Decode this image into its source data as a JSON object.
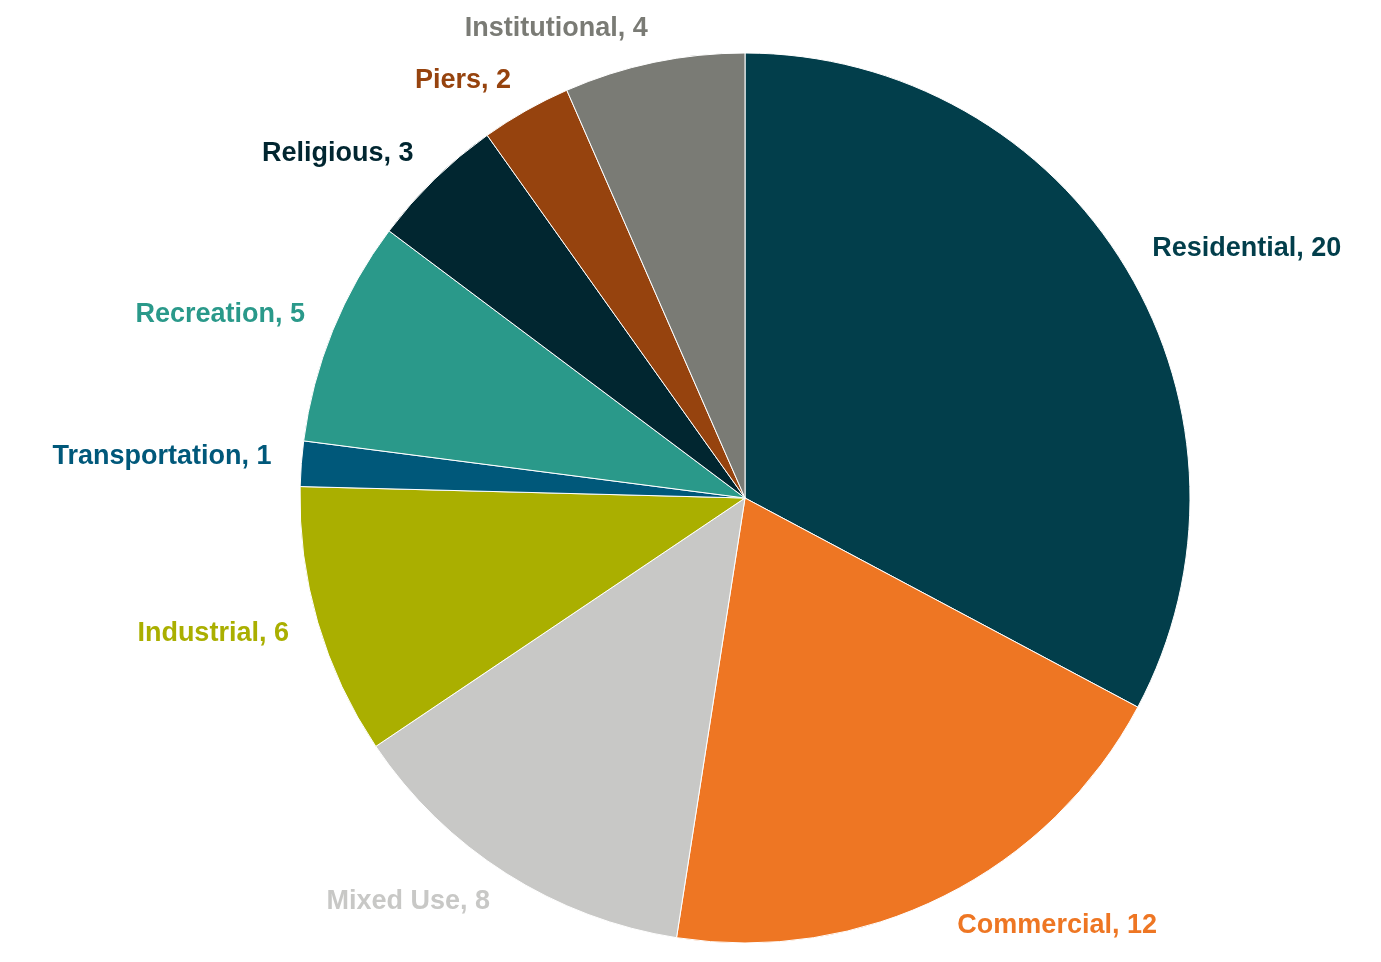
{
  "chart_data": {
    "type": "pie",
    "categories": [
      "Residential",
      "Commercial",
      "Mixed Use",
      "Industrial",
      "Transportation",
      "Recreation",
      "Religious",
      "Piers",
      "Institutional"
    ],
    "values": [
      20,
      12,
      8,
      6,
      1,
      5,
      3,
      2,
      4
    ],
    "colors": [
      "#023e4b",
      "#ee7623",
      "#c8c8c6",
      "#aaaf00",
      "#00587a",
      "#2a998a",
      "#012630",
      "#96430e",
      "#7a7b75"
    ],
    "value_labels": [
      ", 20",
      ", 12",
      ", 8",
      ", 6",
      ", 1",
      ", 5",
      ", 3",
      ", 2",
      ", 4"
    ]
  }
}
